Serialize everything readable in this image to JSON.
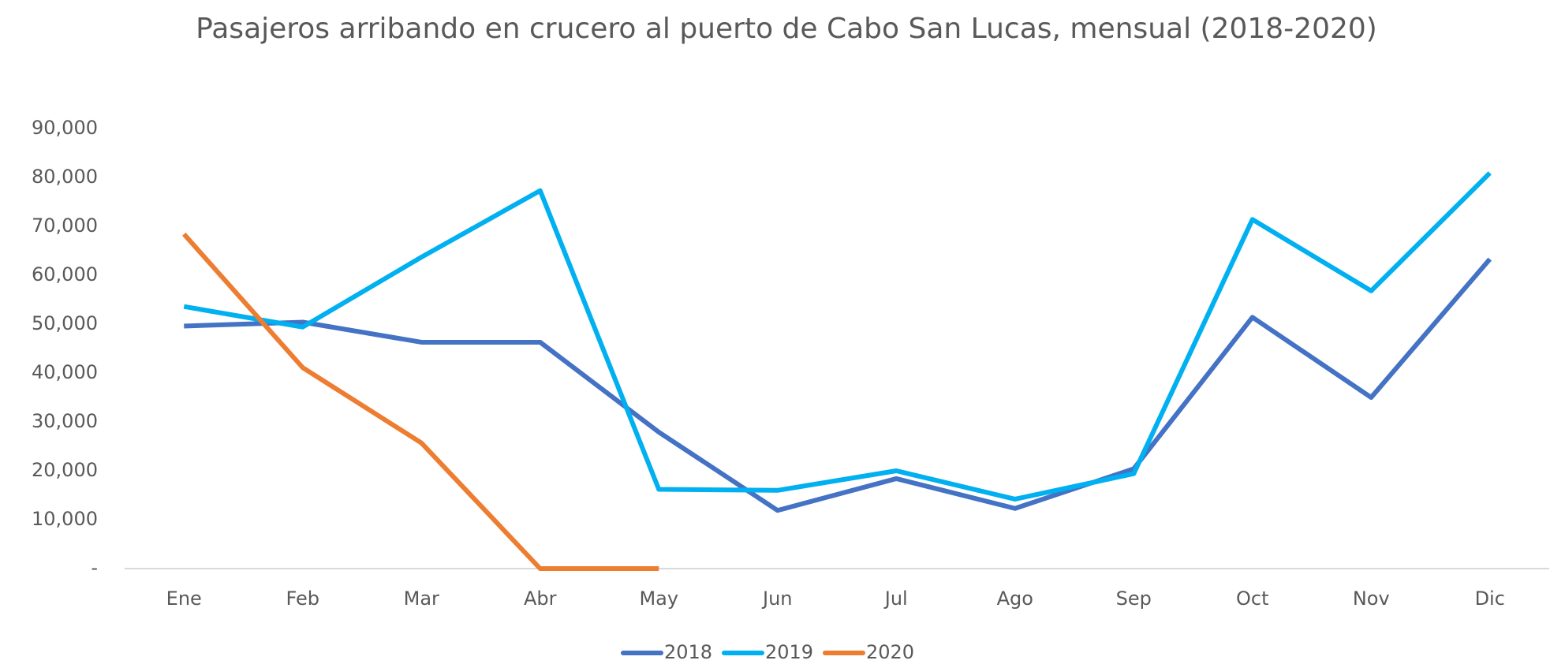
{
  "chart_data": {
    "type": "line",
    "title": "Pasajeros arribando en crucero al puerto de Cabo San Lucas, mensual (2018-2020)",
    "categories": [
      "Ene",
      "Feb",
      "Mar",
      "Abr",
      "May",
      "Jun",
      "Jul",
      "Ago",
      "Sep",
      "Oct",
      "Nov",
      "Dic"
    ],
    "series": [
      {
        "name": "2018",
        "color": "#4472c4",
        "values": [
          49600,
          50400,
          46300,
          46300,
          27900,
          11900,
          18400,
          12300,
          20400,
          51400,
          35000,
          63300
        ]
      },
      {
        "name": "2019",
        "color": "#00b0f0",
        "values": [
          53600,
          49400,
          63700,
          77300,
          16200,
          16000,
          20000,
          14200,
          19400,
          71400,
          56800,
          80900
        ]
      },
      {
        "name": "2020",
        "color": "#ed7d31",
        "values": [
          68400,
          41100,
          25700,
          0,
          0,
          null,
          null,
          null,
          null,
          null,
          null,
          null
        ]
      }
    ],
    "ylim": [
      0,
      90000
    ],
    "yticks": [
      {
        "value": 0,
        "label": "-"
      },
      {
        "value": 10000,
        "label": "10,000"
      },
      {
        "value": 20000,
        "label": "20,000"
      },
      {
        "value": 30000,
        "label": "30,000"
      },
      {
        "value": 40000,
        "label": "40,000"
      },
      {
        "value": 50000,
        "label": "50,000"
      },
      {
        "value": 60000,
        "label": "60,000"
      },
      {
        "value": 70000,
        "label": "70,000"
      },
      {
        "value": 80000,
        "label": "80,000"
      },
      {
        "value": 90000,
        "label": "90,000"
      }
    ],
    "grid": false,
    "legend": "bottom"
  }
}
